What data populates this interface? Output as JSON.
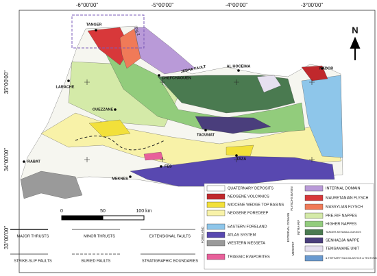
{
  "map": {
    "longitudes": [
      "-6°00'00\"",
      "-5°00'00\"",
      "-4°00'00\"",
      "-3°00'00\""
    ],
    "latitudes": [
      "35°00'00\"",
      "34°00'00\"",
      "33°00'00\""
    ],
    "cities": [
      "TANGER",
      "CHEFCHAOUEN",
      "AL HOCEIMA",
      "NADOR",
      "LARACHE",
      "OUEZZANE",
      "TAOUNAT",
      "RABAT",
      "FES",
      "MEKNES",
      "TAZA"
    ],
    "annotations": {
      "fault": "JEBHA FAULT",
      "figure": "Fig 2",
      "north": "N"
    },
    "scale": [
      "0",
      "50",
      "100 km"
    ]
  },
  "legend": {
    "units": [
      {
        "label": "QUATERNARY DEPOSITS",
        "color": "#ffffff"
      },
      {
        "label": "NEOGENE VOLCANICS",
        "color": "#c0282c"
      },
      {
        "label": "MIOCENE WEDGE TOP BASINS",
        "color": "#f2e03a"
      },
      {
        "label": "NEOGENE FOREDEEP",
        "color": "#f8f2a8"
      },
      {
        "label": "EASTERN FORELAND",
        "color": "#8ec6ea"
      },
      {
        "label": "ATLAS SYSTEM",
        "color": "#5848b0"
      },
      {
        "label": "WESTERN MESSETA",
        "color": "#9a9a9a"
      },
      {
        "label": "TRIASSIC EVAPORITES",
        "color": "#e8609a"
      },
      {
        "label": "INTERNAL DOMAIN",
        "color": "#b99ad8"
      },
      {
        "label": "MAURETANIAN FLYSCH",
        "color": "#d8383a"
      },
      {
        "label": "MASSYLIAN FLYSCH",
        "color": "#f07a58"
      },
      {
        "label": "PRE-RIF NAPPES",
        "color": "#d4eaa8"
      },
      {
        "label": "HIGHER NAPPES",
        "color": "#92cc7c"
      },
      {
        "label": "TANGER-KETAMA-LOUKKOS",
        "color": "#4a7a50"
      },
      {
        "label": "SENHADJA NAPPE",
        "color": "#4a3e7c"
      },
      {
        "label": "TEMSAMANE UNIT",
        "color": "#e6e0f0"
      },
      {
        "label": "& TERTIARY SILICICLASTICS & TECTONIC WINDOWS",
        "color": "#6a9ad0"
      }
    ],
    "groups": [
      "FORELAND",
      "FLYSCHS BASIN",
      "EXTERNAL DOMAIN",
      "INTRA-RIF",
      "MESORIF"
    ],
    "lines": [
      "MAJOR THRUSTS",
      "MINOR THRUSTS",
      "EXTENSIONAL FAULTS",
      "STRIKE-SLIP FAULTS",
      "BURIED FAULTS",
      "STRATIGRAPHIC BOUNDARIES"
    ]
  }
}
